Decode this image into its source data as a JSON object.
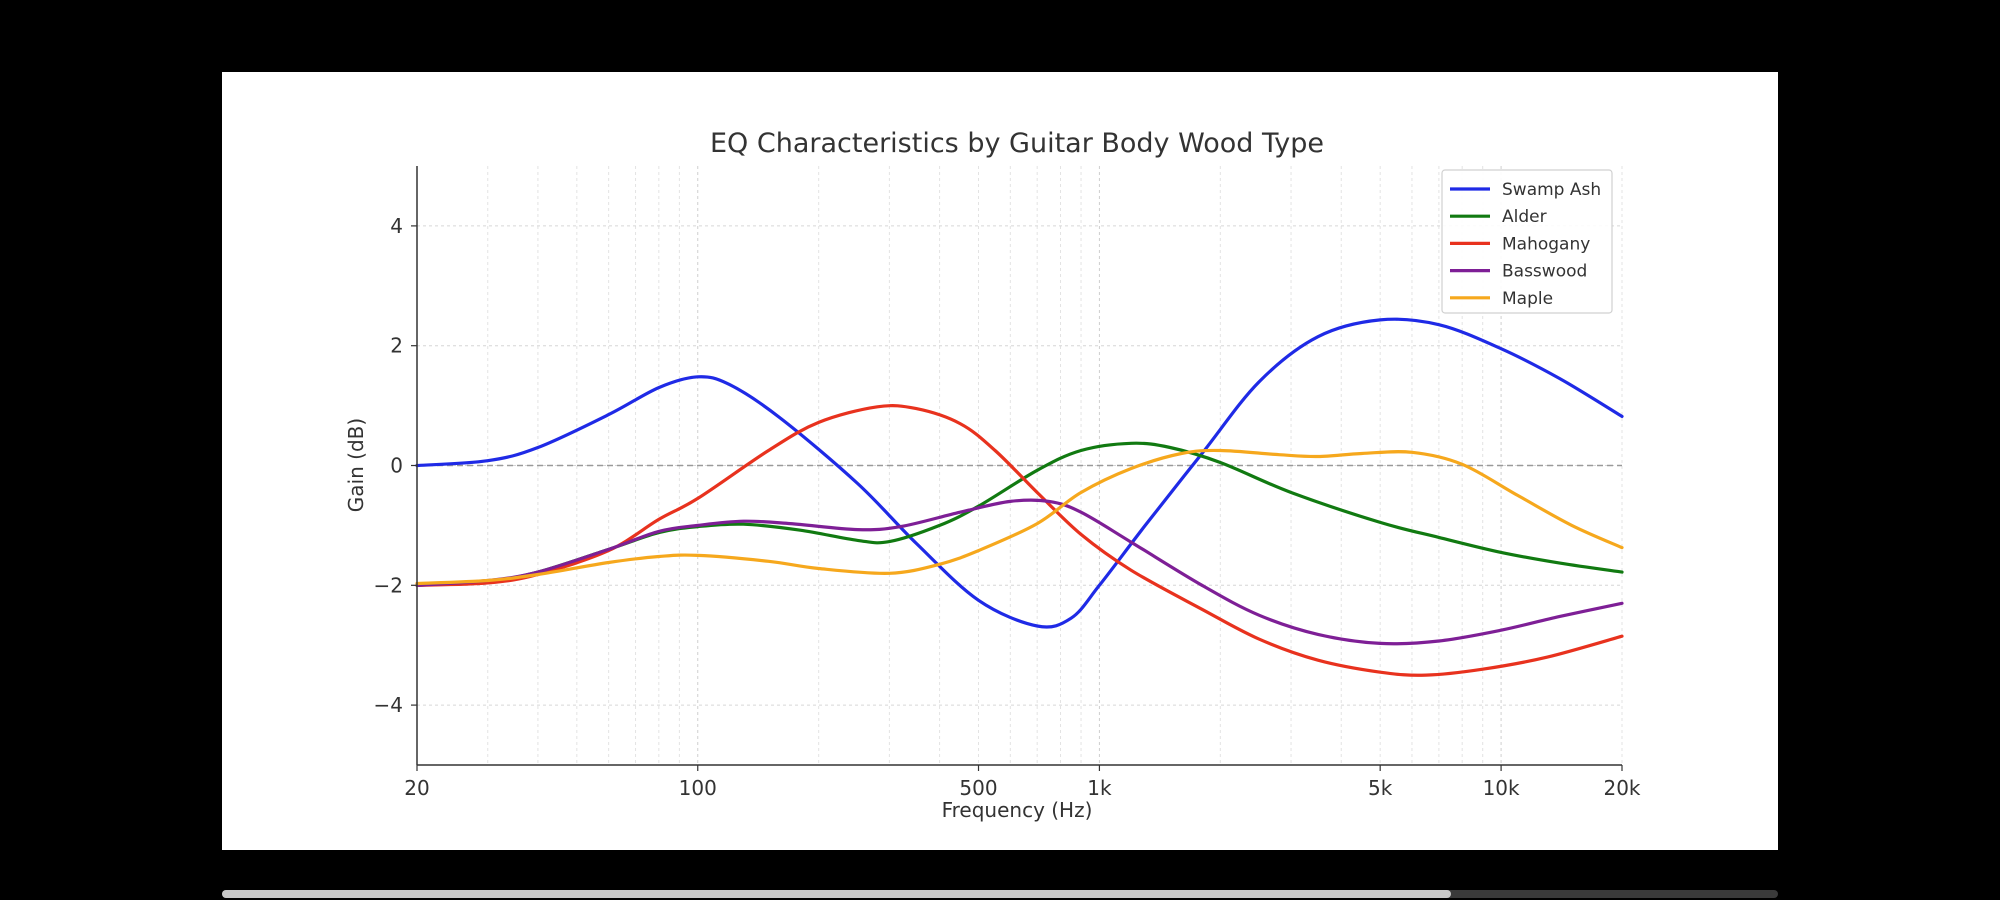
{
  "colors": {
    "background": "#000000",
    "panel": "#ffffff",
    "scroll_track": "#3a3a3a",
    "scroll_thumb": "#c8c8c8"
  },
  "scroll": {
    "progress": 0.79
  },
  "chart_data": {
    "type": "line",
    "title": "EQ Characteristics by Guitar Body Wood Type",
    "xlabel": "Frequency (Hz)",
    "ylabel": "Gain (dB)",
    "xscale": "log",
    "xlim": [
      20,
      20000
    ],
    "ylim": [
      -5,
      5
    ],
    "grid": true,
    "reference_line": {
      "y": 0,
      "style": "dashed"
    },
    "x_ticks": [
      {
        "value": 20,
        "label": "20"
      },
      {
        "value": 100,
        "label": "100"
      },
      {
        "value": 500,
        "label": "500"
      },
      {
        "value": 1000,
        "label": "1k"
      },
      {
        "value": 5000,
        "label": "5k"
      },
      {
        "value": 10000,
        "label": "10k"
      },
      {
        "value": 20000,
        "label": "20k"
      }
    ],
    "y_ticks": [
      {
        "value": 4,
        "label": "4"
      },
      {
        "value": 2,
        "label": "2"
      },
      {
        "value": 0,
        "label": "0"
      },
      {
        "value": -2,
        "label": "−2"
      },
      {
        "value": -4,
        "label": "−4"
      }
    ],
    "legend_position": "top-right",
    "series": [
      {
        "name": "Swamp Ash",
        "color": "#1f2ae6",
        "points": [
          [
            20,
            0
          ],
          [
            30,
            0.08
          ],
          [
            40,
            0.3
          ],
          [
            60,
            0.85
          ],
          [
            80,
            1.3
          ],
          [
            100,
            1.48
          ],
          [
            120,
            1.35
          ],
          [
            160,
            0.8
          ],
          [
            250,
            -0.3
          ],
          [
            350,
            -1.3
          ],
          [
            500,
            -2.25
          ],
          [
            700,
            -2.68
          ],
          [
            850,
            -2.55
          ],
          [
            1000,
            -2.0
          ],
          [
            1300,
            -1.0
          ],
          [
            1800,
            0.2
          ],
          [
            2500,
            1.4
          ],
          [
            3500,
            2.15
          ],
          [
            5000,
            2.43
          ],
          [
            7000,
            2.35
          ],
          [
            10000,
            1.95
          ],
          [
            14000,
            1.45
          ],
          [
            20000,
            0.82
          ]
        ]
      },
      {
        "name": "Alder",
        "color": "#117a11",
        "points": [
          [
            20,
            -2
          ],
          [
            30,
            -1.93
          ],
          [
            40,
            -1.78
          ],
          [
            60,
            -1.4
          ],
          [
            80,
            -1.12
          ],
          [
            100,
            -1.02
          ],
          [
            130,
            -0.98
          ],
          [
            180,
            -1.08
          ],
          [
            250,
            -1.25
          ],
          [
            300,
            -1.27
          ],
          [
            400,
            -1.0
          ],
          [
            500,
            -0.68
          ],
          [
            700,
            -0.08
          ],
          [
            900,
            0.25
          ],
          [
            1200,
            0.37
          ],
          [
            1500,
            0.3
          ],
          [
            2000,
            0.05
          ],
          [
            3000,
            -0.45
          ],
          [
            5000,
            -0.95
          ],
          [
            7000,
            -1.2
          ],
          [
            10000,
            -1.45
          ],
          [
            14000,
            -1.63
          ],
          [
            20000,
            -1.78
          ]
        ]
      },
      {
        "name": "Mahogany",
        "color": "#e8321e",
        "points": [
          [
            20,
            -2
          ],
          [
            30,
            -1.96
          ],
          [
            40,
            -1.82
          ],
          [
            60,
            -1.42
          ],
          [
            80,
            -0.9
          ],
          [
            100,
            -0.55
          ],
          [
            150,
            0.25
          ],
          [
            200,
            0.72
          ],
          [
            280,
            0.98
          ],
          [
            350,
            0.95
          ],
          [
            450,
            0.7
          ],
          [
            550,
            0.25
          ],
          [
            700,
            -0.45
          ],
          [
            900,
            -1.15
          ],
          [
            1200,
            -1.75
          ],
          [
            1800,
            -2.4
          ],
          [
            2500,
            -2.9
          ],
          [
            3500,
            -3.25
          ],
          [
            5000,
            -3.45
          ],
          [
            6500,
            -3.5
          ],
          [
            9000,
            -3.4
          ],
          [
            13000,
            -3.2
          ],
          [
            20000,
            -2.85
          ]
        ]
      },
      {
        "name": "Basswood",
        "color": "#7e1f96",
        "points": [
          [
            20,
            -2
          ],
          [
            30,
            -1.92
          ],
          [
            40,
            -1.78
          ],
          [
            60,
            -1.4
          ],
          [
            80,
            -1.1
          ],
          [
            100,
            -1.0
          ],
          [
            130,
            -0.93
          ],
          [
            170,
            -0.97
          ],
          [
            250,
            -1.07
          ],
          [
            320,
            -1.02
          ],
          [
            450,
            -0.78
          ],
          [
            600,
            -0.6
          ],
          [
            750,
            -0.6
          ],
          [
            900,
            -0.78
          ],
          [
            1200,
            -1.28
          ],
          [
            1800,
            -2.0
          ],
          [
            2500,
            -2.5
          ],
          [
            3500,
            -2.82
          ],
          [
            5000,
            -2.97
          ],
          [
            7000,
            -2.93
          ],
          [
            10000,
            -2.75
          ],
          [
            14000,
            -2.52
          ],
          [
            20000,
            -2.3
          ]
        ]
      },
      {
        "name": "Maple",
        "color": "#f6a81d",
        "points": [
          [
            20,
            -1.97
          ],
          [
            30,
            -1.92
          ],
          [
            40,
            -1.82
          ],
          [
            60,
            -1.62
          ],
          [
            80,
            -1.52
          ],
          [
            100,
            -1.5
          ],
          [
            150,
            -1.6
          ],
          [
            200,
            -1.72
          ],
          [
            300,
            -1.8
          ],
          [
            400,
            -1.65
          ],
          [
            500,
            -1.42
          ],
          [
            700,
            -0.97
          ],
          [
            900,
            -0.45
          ],
          [
            1200,
            -0.05
          ],
          [
            1600,
            0.2
          ],
          [
            2000,
            0.25
          ],
          [
            2800,
            0.18
          ],
          [
            3500,
            0.15
          ],
          [
            4500,
            0.2
          ],
          [
            6000,
            0.22
          ],
          [
            8000,
            0.02
          ],
          [
            11000,
            -0.5
          ],
          [
            15000,
            -1.0
          ],
          [
            20000,
            -1.37
          ]
        ]
      }
    ]
  }
}
